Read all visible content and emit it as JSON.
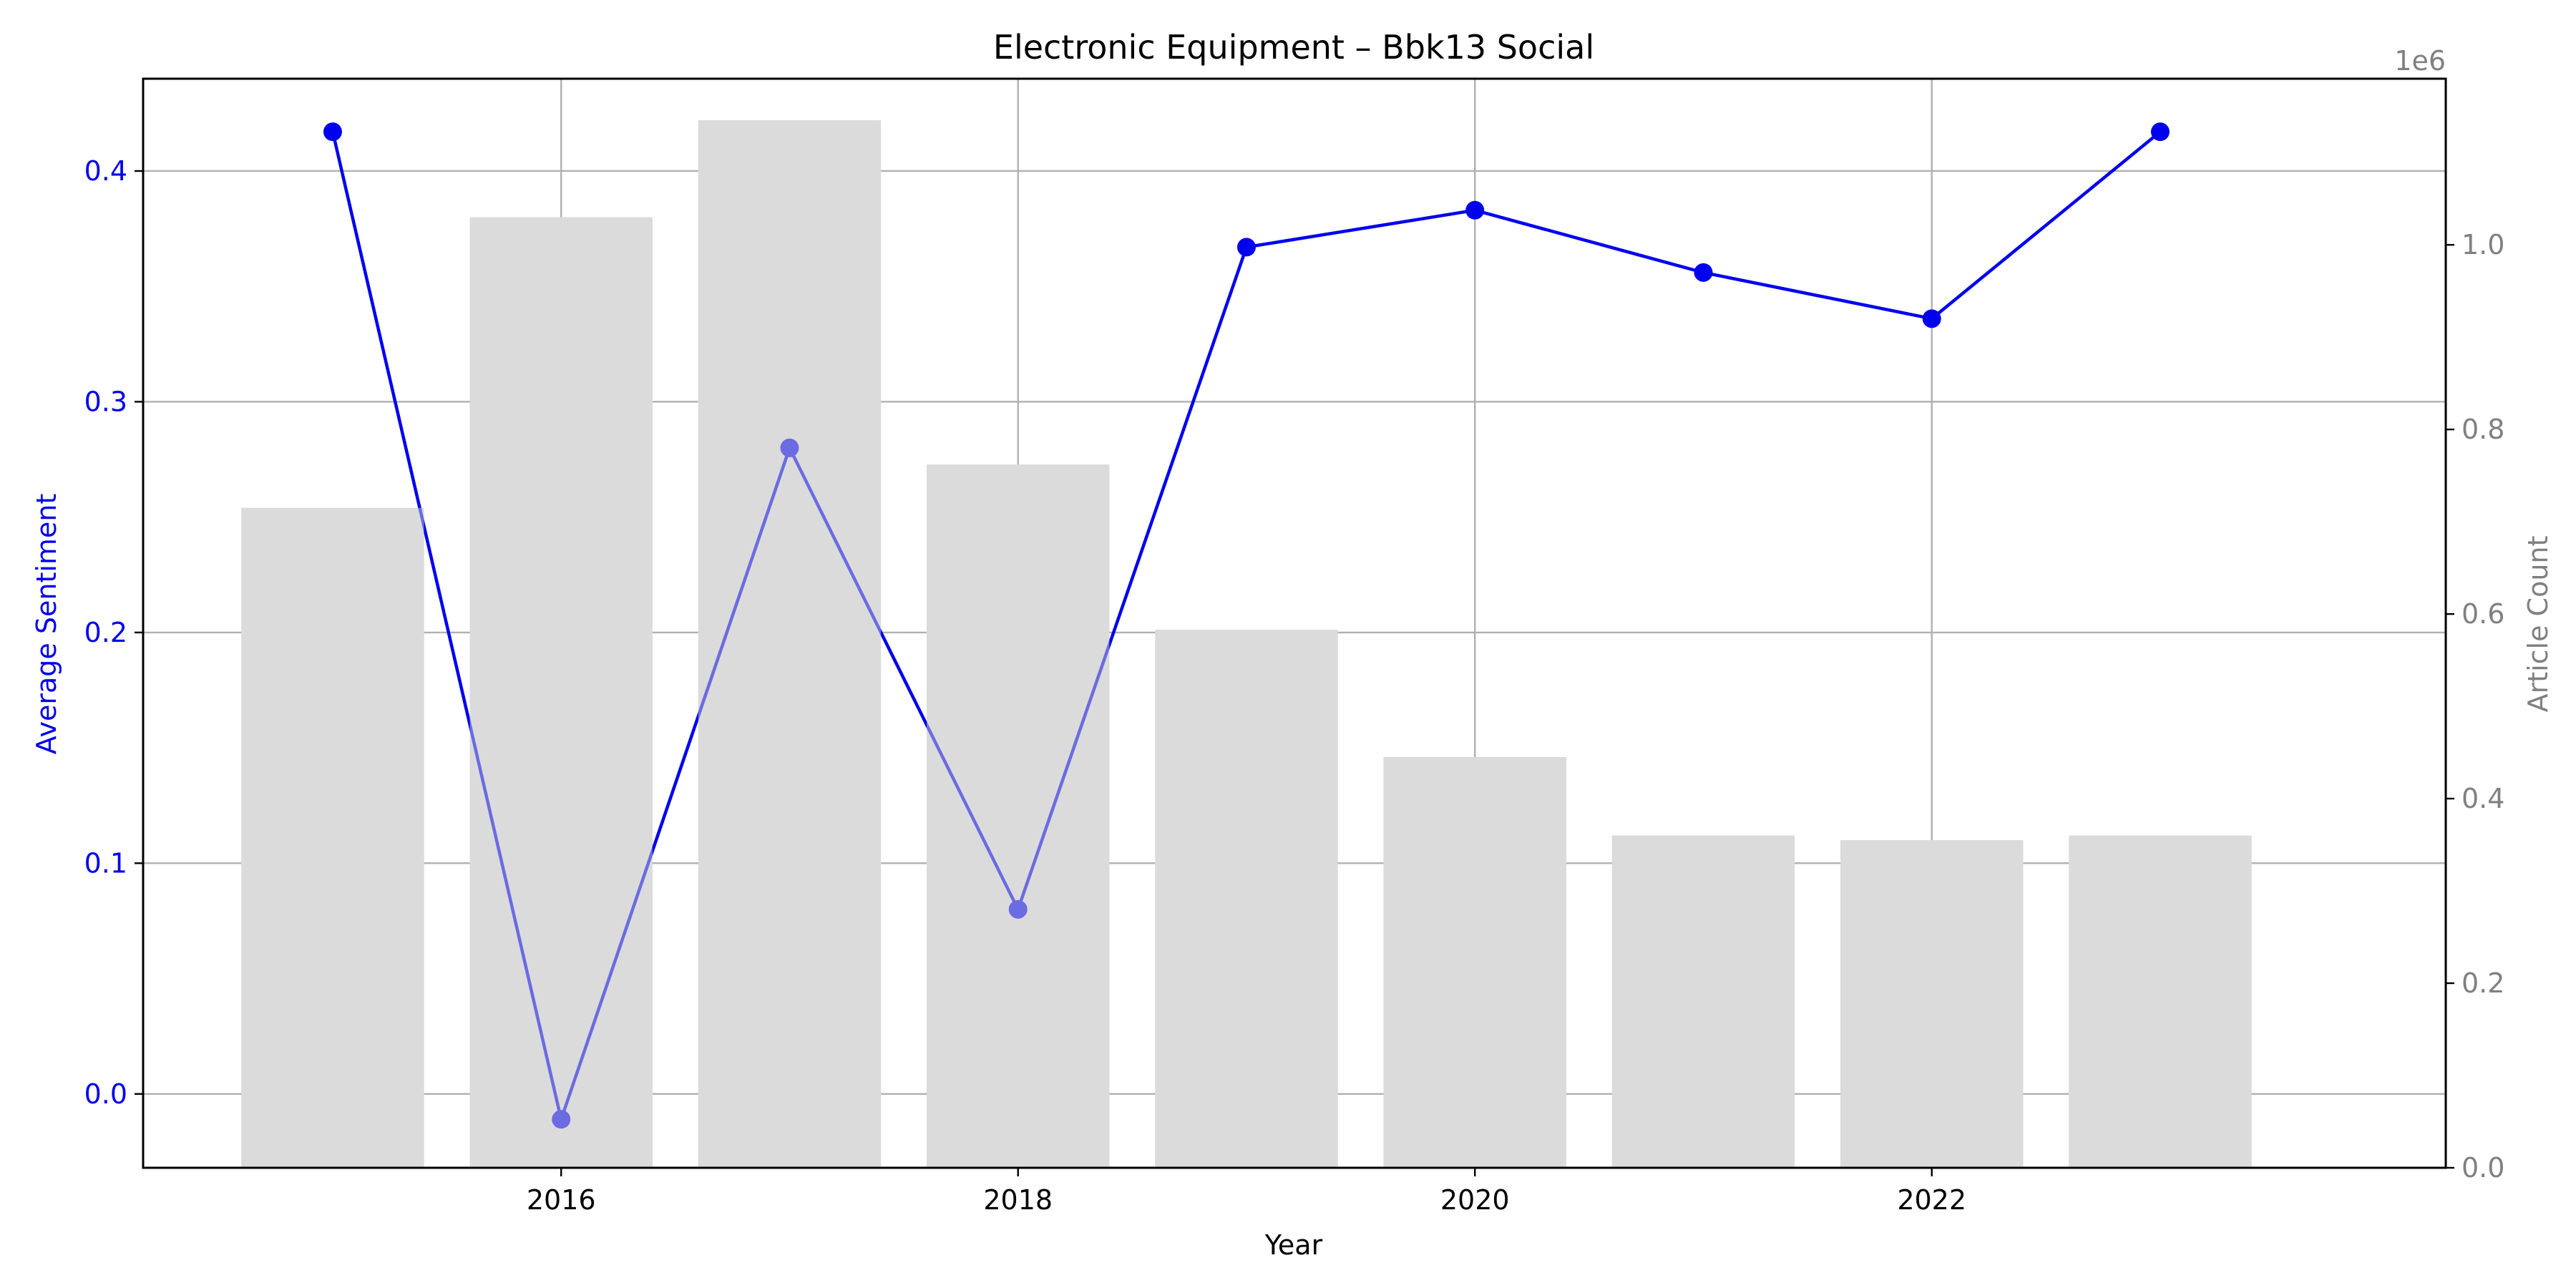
{
  "chart_data": {
    "type": "bar+line",
    "title": "Electronic Equipment – Bbk13 Social",
    "xlabel": "Year",
    "ylabel_left": "Average Sentiment",
    "ylabel_right": "Article Count",
    "right_axis_multiplier": "1e6",
    "x": [
      2015,
      2016,
      2017,
      2018,
      2019,
      2020,
      2021,
      2022,
      2023
    ],
    "x_ticks": [
      "2016",
      "2018",
      "2020",
      "2022"
    ],
    "xlim": [
      2014.17,
      2024.25
    ],
    "ylim_left": [
      -0.032,
      0.44
    ],
    "ylim_right": [
      0,
      1.18
    ],
    "y_ticks_left": [
      "0.0",
      "0.1",
      "0.2",
      "0.3",
      "0.4"
    ],
    "y_ticks_right": [
      "0.0",
      "0.2",
      "0.4",
      "0.6",
      "0.8",
      "1.0"
    ],
    "grid": true,
    "series": [
      {
        "name": "Article Count",
        "axis": "right",
        "kind": "bar",
        "values": [
          0.715,
          1.03,
          1.135,
          0.762,
          0.583,
          0.445,
          0.36,
          0.355,
          0.36
        ]
      },
      {
        "name": "Average Sentiment",
        "axis": "left",
        "kind": "line",
        "values": [
          0.417,
          -0.011,
          0.28,
          0.08,
          0.367,
          0.383,
          0.356,
          0.336,
          0.417
        ]
      }
    ],
    "colors": {
      "line": "#0000ee",
      "bar": "#e0e0e0",
      "left_axis": "#0000ee",
      "right_axis": "#808080",
      "grid": "#b0b0b0"
    }
  }
}
